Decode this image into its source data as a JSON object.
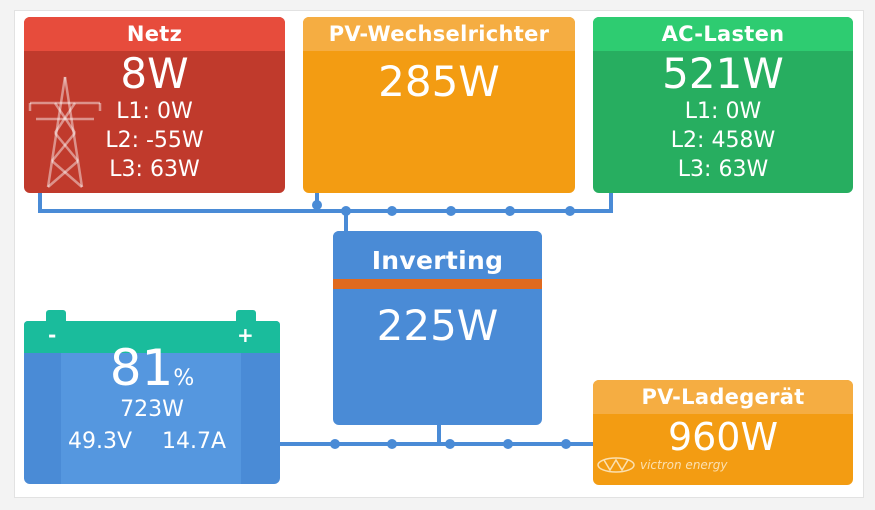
{
  "grid": {
    "title": "Netz",
    "total": "8W",
    "l1": "L1: 0W",
    "l2": "L2: -55W",
    "l3": "L3: 63W"
  },
  "pv_inverter": {
    "title": "PV-Wechselrichter",
    "power": "285W"
  },
  "ac_loads": {
    "title": "AC-Lasten",
    "total": "521W",
    "l1": "L1: 0W",
    "l2": "L2: 458W",
    "l3": "L3: 63W"
  },
  "inverter": {
    "state": "Inverting",
    "power": "225W"
  },
  "battery": {
    "soc": "81",
    "soc_unit": "%",
    "power": "723W",
    "voltage": "49.3V",
    "current": "14.7A",
    "neg_label": "-",
    "pos_label": "+"
  },
  "pv_charger": {
    "title": "PV-Ladegerät",
    "power": "960W",
    "brand": "victron energy"
  },
  "colors": {
    "grid": "#e74c3c",
    "pv": "#f39c12",
    "ac": "#2ecc71",
    "inverter": "#4a8bd6",
    "battery": "#1abc9c",
    "wire": "#4a8bd6",
    "inverter_stripe": "#e06a1e"
  },
  "icons": [
    "power-pylon-icon",
    "victron-logo-icon"
  ]
}
